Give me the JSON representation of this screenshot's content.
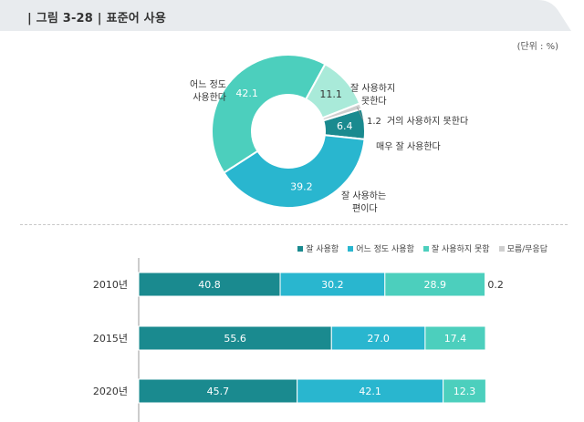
{
  "header": {
    "title": "| 그림 3-28 | 표준어 사용",
    "bg_color": "#e8ebee"
  },
  "unit_label": "(단위 : %)",
  "chart_data": [
    {
      "type": "pie",
      "title": "표준어 사용",
      "slices": [
        {
          "label": "매우 잘 사용한다",
          "value": 6.4,
          "color": "#1a8a8f"
        },
        {
          "label": "잘 사용하는 편이다",
          "value": 39.2,
          "color": "#29b6cf"
        },
        {
          "label": "어느 정도 사용한다",
          "value": 42.1,
          "color": "#4ccfbd"
        },
        {
          "label": "잘 사용하지 못한다",
          "value": 11.1,
          "color": "#a9ead9"
        },
        {
          "label": "거의 사용하지 못한다",
          "value": 1.2,
          "color": "#cfcfcf"
        }
      ],
      "value_labels": {
        "very_well": "6.4",
        "fairly_well": "39.2",
        "somewhat": "42.1",
        "not_well": "11.1",
        "hardly": "1.2"
      },
      "outer_labels": {
        "very_well": "매우 잘 사용한다",
        "fairly_well_line1": "잘 사용하는",
        "fairly_well_line2": "편이다",
        "somewhat_line1": "어느 정도",
        "somewhat_line2": "사용한다",
        "not_well_line1": "잘 사용하지",
        "not_well_line2": "못한다",
        "hardly": "거의 사용하지 못한다"
      }
    },
    {
      "type": "bar",
      "orientation": "horizontal-stacked",
      "categories": [
        "2010년",
        "2015년",
        "2020년"
      ],
      "series": [
        {
          "name": "잘 사용함",
          "values": [
            40.8,
            55.6,
            45.7
          ],
          "color": "#1a8a8f"
        },
        {
          "name": "어느 정도 사용함",
          "values": [
            30.2,
            27.0,
            42.1
          ],
          "color": "#29b6cf"
        },
        {
          "name": "잘 사용하지 못함",
          "values": [
            28.9,
            17.4,
            12.3
          ],
          "color": "#4ccfbd"
        },
        {
          "name": "모름/무응답",
          "values": [
            0.2,
            0,
            0
          ],
          "color": "#cfcfcf"
        }
      ],
      "value_labels": [
        [
          "40.8",
          "30.2",
          "28.9",
          "0.2"
        ],
        [
          "55.6",
          "27.0",
          "17.4",
          ""
        ],
        [
          "45.7",
          "42.1",
          "12.3",
          ""
        ]
      ],
      "xlim": [
        0,
        100
      ]
    }
  ]
}
